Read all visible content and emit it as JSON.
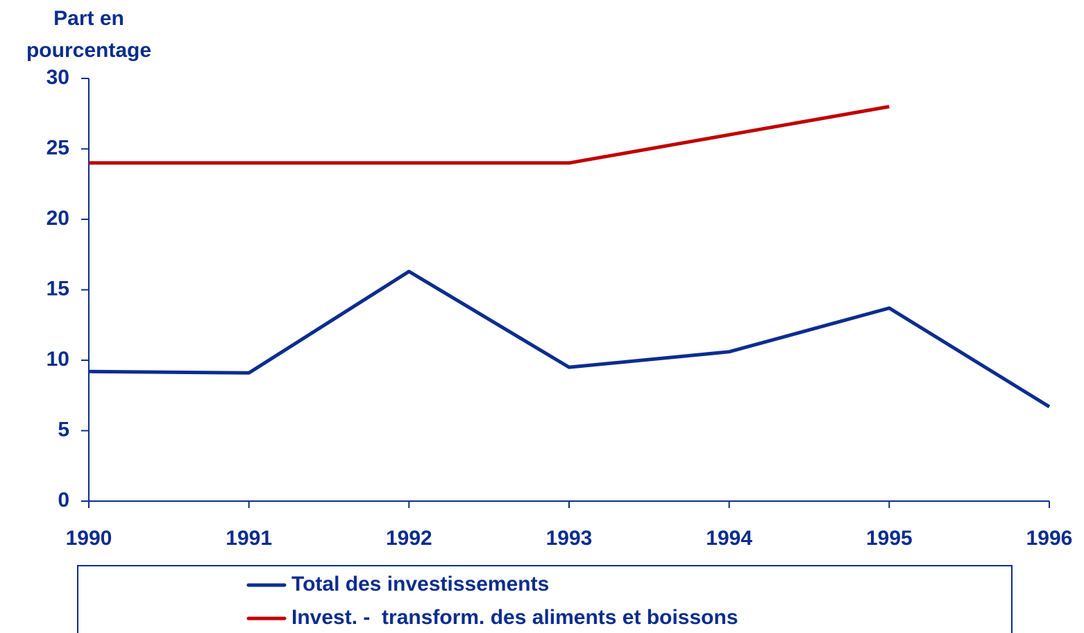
{
  "chart_data": {
    "type": "line",
    "y_label": "Part en pourcentage",
    "categories": [
      "1990",
      "1991",
      "1992",
      "1993",
      "1994",
      "1995",
      "1996"
    ],
    "series": [
      {
        "name": "Total des investissements",
        "color": "#0b2d8e",
        "values": [
          9.2,
          9.1,
          16.3,
          9.5,
          10.6,
          13.7,
          6.7
        ]
      },
      {
        "name": "Invest. -  transform. des aliments et boissons",
        "color": "#c00000",
        "values": [
          24,
          24,
          24,
          24,
          26,
          28,
          null
        ]
      }
    ],
    "ylim": [
      0,
      30
    ],
    "yticks": [
      0,
      5,
      10,
      15,
      20,
      25,
      30
    ],
    "grid": false,
    "legend": "bottom"
  }
}
